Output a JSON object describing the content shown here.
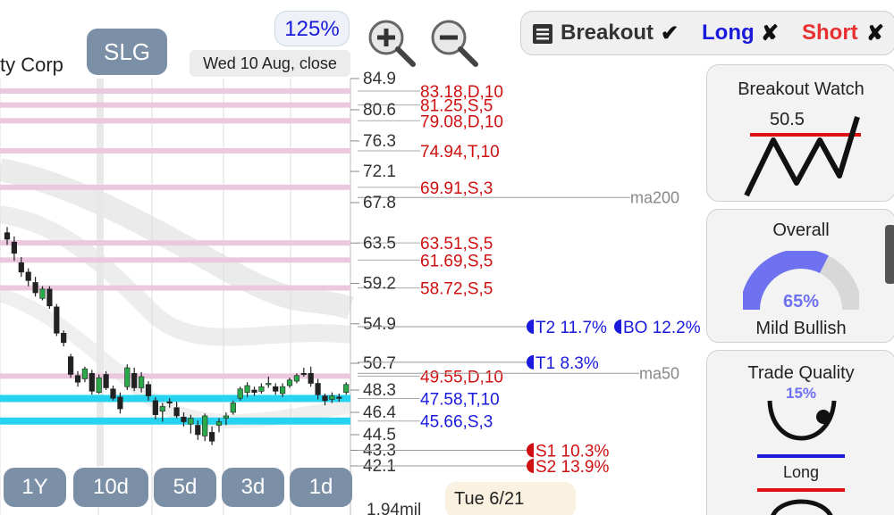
{
  "header": {
    "company_fragment": "ty Corp",
    "ticker": "SLG",
    "zoom": "125%",
    "date_label": "Wed 10 Aug, close"
  },
  "toolbar": {
    "breakout_label": "Breakout",
    "breakout_mark": "✔",
    "long_label": "Long",
    "long_mark": "✘",
    "short_label": "Short",
    "short_mark": "✘",
    "colors": {
      "breakout": "#333333",
      "long": "#1a1adc",
      "short": "#e83030"
    }
  },
  "timeframes": [
    "1Y",
    "10d",
    "5d",
    "3d",
    "1d"
  ],
  "tooltip_date": "Tue 6/21",
  "panels": {
    "breakout_watch": {
      "title": "Breakout Watch",
      "value": "50.5"
    },
    "overall": {
      "title": "Overall",
      "percent": "65%",
      "percent_value": 65,
      "label": "Mild Bullish"
    },
    "trade_quality": {
      "title": "Trade Quality",
      "percent": "15%",
      "label": "Long"
    }
  },
  "chart_data": {
    "type": "candlestick",
    "y_ticks": [
      "84.9",
      "80.6",
      "76.3",
      "72.1",
      "67.8",
      "63.5",
      "59.2",
      "54.9",
      "50.7",
      "48.3",
      "46.4",
      "44.5",
      "43.3",
      "42.1"
    ],
    "volume_label": "1.94mil",
    "levels": [
      {
        "label": "83.18,D,10",
        "value": 83.18,
        "color": "#d01010"
      },
      {
        "label": "81.25,S,5",
        "value": 81.25,
        "color": "#d01010"
      },
      {
        "label": "79.08,D,10",
        "value": 79.08,
        "color": "#d01010"
      },
      {
        "label": "74.94,T,10",
        "value": 74.94,
        "color": "#d01010"
      },
      {
        "label": "69.91,S,3",
        "value": 69.91,
        "color": "#d01010"
      },
      {
        "label": "63.51,S,5",
        "value": 63.51,
        "color": "#d01010"
      },
      {
        "label": "61.69,S,5",
        "value": 61.69,
        "color": "#d01010"
      },
      {
        "label": "58.72,S,5",
        "value": 58.72,
        "color": "#d01010"
      },
      {
        "label": "49.55,D,10",
        "value": 49.55,
        "color": "#d01010"
      },
      {
        "label": "47.58,T,10",
        "value": 47.58,
        "color": "#1a1adc"
      },
      {
        "label": "45.66,S,3",
        "value": 45.66,
        "color": "#1a1adc"
      }
    ],
    "moving_averages": [
      {
        "name": "ma200",
        "value": 68.5
      },
      {
        "name": "ma50",
        "value": 49.8
      }
    ],
    "targets": [
      {
        "label": "T2 11.7%",
        "value": 54.6,
        "color": "#1a1adc"
      },
      {
        "label": "BO 12.2%",
        "value": 54.6,
        "color": "#1a1adc"
      },
      {
        "label": "T1 8.3%",
        "value": 52.9,
        "color": "#1a1adc"
      },
      {
        "label": "S1 10.3%",
        "value": 43.3,
        "color": "#d01010"
      },
      {
        "label": "S2 13.9%",
        "value": 42.1,
        "color": "#d01010"
      }
    ],
    "candles": [
      {
        "o": 64.6,
        "h": 65.2,
        "l": 63.3,
        "c": 63.9
      },
      {
        "o": 63.6,
        "h": 64.2,
        "l": 61.6,
        "c": 62.4
      },
      {
        "o": 61.4,
        "h": 62.0,
        "l": 59.9,
        "c": 60.4
      },
      {
        "o": 60.4,
        "h": 60.8,
        "l": 58.9,
        "c": 59.5
      },
      {
        "o": 59.3,
        "h": 59.9,
        "l": 57.8,
        "c": 58.2
      },
      {
        "o": 57.6,
        "h": 58.9,
        "l": 57.4,
        "c": 58.6
      },
      {
        "o": 58.6,
        "h": 58.9,
        "l": 56.5,
        "c": 56.8
      },
      {
        "o": 56.7,
        "h": 57.0,
        "l": 53.6,
        "c": 53.9
      },
      {
        "o": 53.9,
        "h": 54.2,
        "l": 52.5,
        "c": 52.9
      },
      {
        "o": 51.4,
        "h": 51.7,
        "l": 49.4,
        "c": 49.7
      },
      {
        "o": 49.6,
        "h": 50.0,
        "l": 48.6,
        "c": 49.0
      },
      {
        "o": 49.3,
        "h": 50.4,
        "l": 49.0,
        "c": 50.2
      },
      {
        "o": 49.8,
        "h": 50.1,
        "l": 47.9,
        "c": 48.2
      },
      {
        "o": 48.1,
        "h": 49.7,
        "l": 48.0,
        "c": 49.4
      },
      {
        "o": 49.7,
        "h": 50.0,
        "l": 48.3,
        "c": 48.5
      },
      {
        "o": 48.4,
        "h": 48.7,
        "l": 47.4,
        "c": 47.6
      },
      {
        "o": 47.7,
        "h": 48.1,
        "l": 46.3,
        "c": 46.7
      },
      {
        "o": 48.6,
        "h": 50.6,
        "l": 48.3,
        "c": 50.3
      },
      {
        "o": 49.8,
        "h": 50.3,
        "l": 48.2,
        "c": 48.5
      },
      {
        "o": 48.5,
        "h": 49.9,
        "l": 48.1,
        "c": 49.5
      },
      {
        "o": 48.8,
        "h": 49.1,
        "l": 47.4,
        "c": 47.8
      },
      {
        "o": 47.4,
        "h": 47.7,
        "l": 45.8,
        "c": 46.2
      },
      {
        "o": 46.5,
        "h": 47.2,
        "l": 45.6,
        "c": 46.9
      },
      {
        "o": 47.3,
        "h": 47.6,
        "l": 46.8,
        "c": 47.2
      },
      {
        "o": 46.8,
        "h": 47.3,
        "l": 45.9,
        "c": 46.1
      },
      {
        "o": 46.0,
        "h": 46.4,
        "l": 45.2,
        "c": 45.6
      },
      {
        "o": 45.4,
        "h": 46.2,
        "l": 44.6,
        "c": 45.9
      },
      {
        "o": 45.3,
        "h": 45.7,
        "l": 44.1,
        "c": 44.5
      },
      {
        "o": 44.4,
        "h": 46.3,
        "l": 44.0,
        "c": 46.1
      },
      {
        "o": 44.7,
        "h": 45.2,
        "l": 43.7,
        "c": 44.0
      },
      {
        "o": 45.3,
        "h": 45.9,
        "l": 44.7,
        "c": 45.6
      },
      {
        "o": 45.9,
        "h": 46.4,
        "l": 45.3,
        "c": 46.1
      },
      {
        "o": 46.4,
        "h": 47.4,
        "l": 46.2,
        "c": 47.2
      },
      {
        "o": 47.6,
        "h": 48.6,
        "l": 47.4,
        "c": 48.4
      },
      {
        "o": 48.1,
        "h": 49.0,
        "l": 47.7,
        "c": 48.7
      },
      {
        "o": 48.3,
        "h": 48.6,
        "l": 47.8,
        "c": 48.1
      },
      {
        "o": 48.2,
        "h": 48.9,
        "l": 48.0,
        "c": 48.6
      },
      {
        "o": 48.8,
        "h": 49.5,
        "l": 48.5,
        "c": 48.9
      },
      {
        "o": 48.6,
        "h": 48.9,
        "l": 47.9,
        "c": 48.2
      },
      {
        "o": 48.0,
        "h": 48.9,
        "l": 47.7,
        "c": 48.6
      },
      {
        "o": 48.7,
        "h": 49.4,
        "l": 48.5,
        "c": 49.2
      },
      {
        "o": 49.1,
        "h": 49.8,
        "l": 48.9,
        "c": 49.6
      },
      {
        "o": 49.8,
        "h": 50.3,
        "l": 49.5,
        "c": 49.7
      },
      {
        "o": 49.8,
        "h": 50.4,
        "l": 48.6,
        "c": 48.9
      },
      {
        "o": 48.9,
        "h": 49.3,
        "l": 47.5,
        "c": 47.9
      },
      {
        "o": 47.8,
        "h": 48.0,
        "l": 47.0,
        "c": 47.4
      },
      {
        "o": 47.5,
        "h": 48.1,
        "l": 47.2,
        "c": 47.8
      },
      {
        "o": 47.7,
        "h": 48.0,
        "l": 47.3,
        "c": 47.6
      },
      {
        "o": 48.1,
        "h": 49.0,
        "l": 47.9,
        "c": 48.8
      }
    ]
  }
}
